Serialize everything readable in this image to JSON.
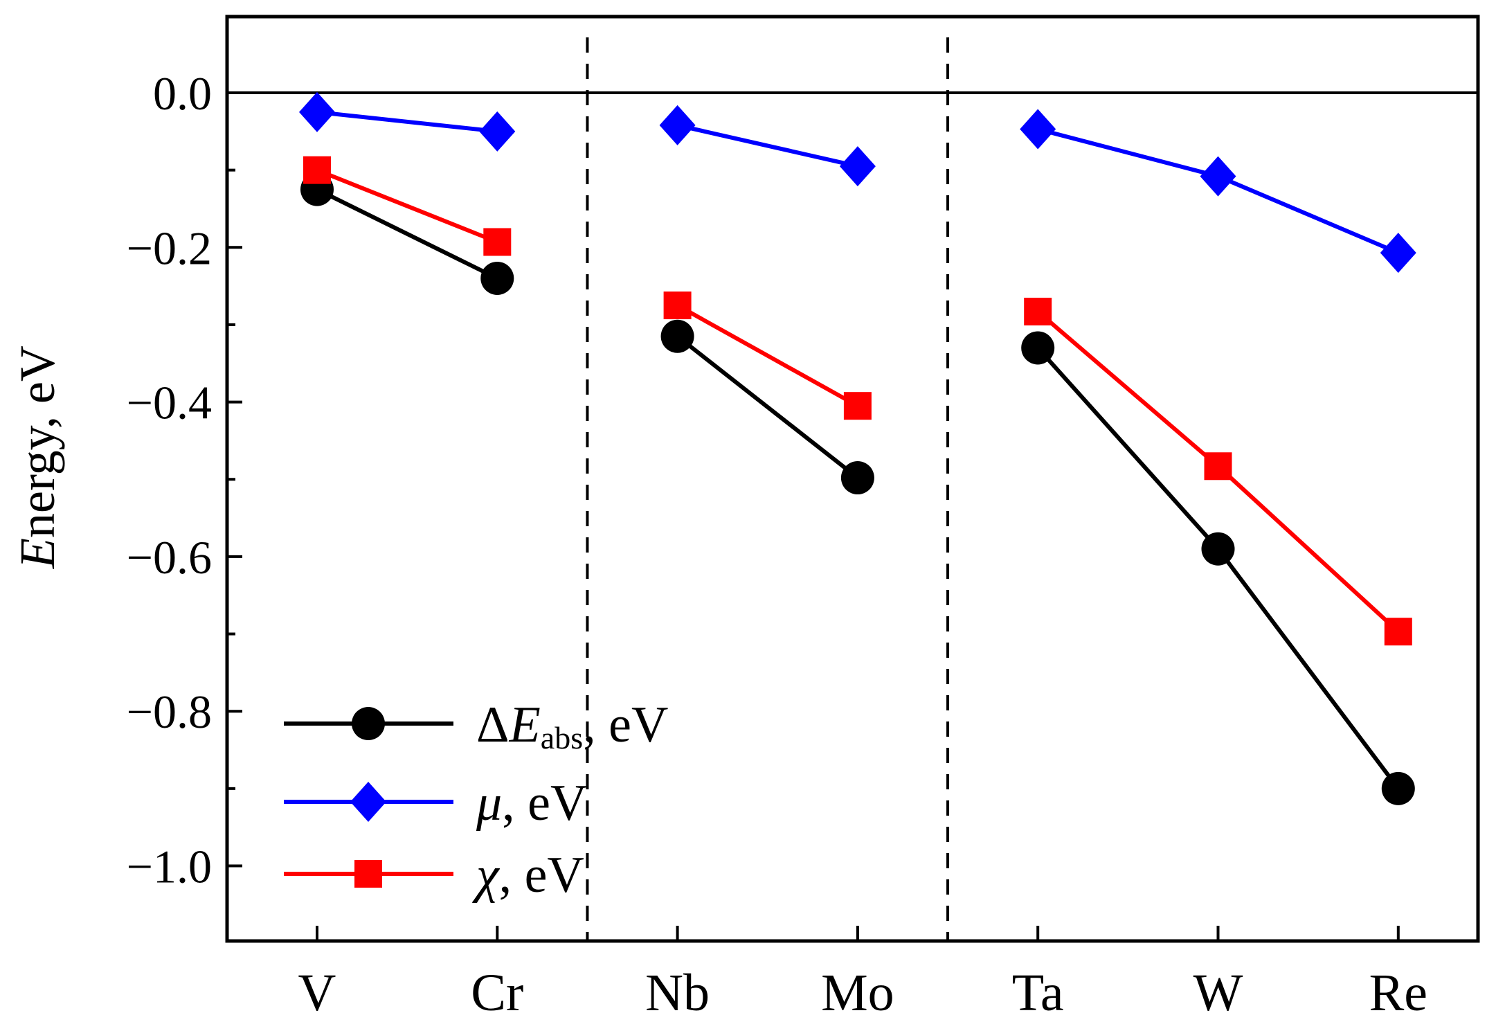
{
  "chart_data": {
    "type": "line",
    "title": "",
    "xlabel": "",
    "ylabel": {
      "italic": "E",
      "rest": "nergy, eV"
    },
    "categories": [
      "V",
      "Cr",
      "Nb",
      "Mo",
      "Ta",
      "W",
      "Re"
    ],
    "groups": [
      [
        0,
        1
      ],
      [
        2,
        3
      ],
      [
        4,
        5,
        6
      ]
    ],
    "group_separators_after": [
      1,
      3
    ],
    "ylim": [
      -1.1,
      0.1
    ],
    "yticks": [
      0.0,
      -0.2,
      -0.4,
      -0.6,
      -0.8,
      -1.0
    ],
    "ytick_labels": [
      "0.0",
      "−0.2",
      "−0.4",
      "−0.6",
      "−0.8",
      "−1.0"
    ],
    "zero_line": true,
    "series": [
      {
        "name": "ΔE_abs, eV",
        "legend": {
          "prefix": "Δ",
          "italic": "E",
          "sub": "abs",
          "suffix": ", eV"
        },
        "color": "#000000",
        "marker": "circle",
        "values": [
          -0.125,
          -0.24,
          -0.315,
          -0.498,
          -0.33,
          -0.59,
          -0.9
        ]
      },
      {
        "name": "μ, eV",
        "legend": {
          "prefix": "",
          "italic": "μ",
          "sub": "",
          "suffix": ", eV"
        },
        "color": "#0000ff",
        "marker": "diamond",
        "values": [
          -0.025,
          -0.05,
          -0.042,
          -0.095,
          -0.047,
          -0.108,
          -0.207
        ]
      },
      {
        "name": "χ, eV",
        "legend": {
          "prefix": "",
          "italic": "χ",
          "sub": "",
          "suffix": ", eV"
        },
        "color": "#ff0000",
        "marker": "square",
        "values": [
          -0.1,
          -0.193,
          -0.275,
          -0.405,
          -0.283,
          -0.483,
          -0.697
        ]
      }
    ],
    "legend_position": "bottom-left"
  }
}
